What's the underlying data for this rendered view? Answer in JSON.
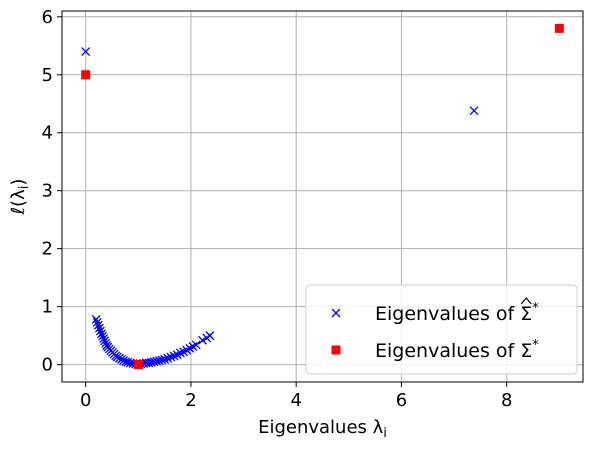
{
  "chart_data": {
    "type": "scatter",
    "xlabel": "Eigenvalues λ",
    "xlabel_sub": "i",
    "ylabel": "ℓ(λ",
    "ylabel_sub": "i",
    "ylabel_close": ")",
    "xlim": [
      -0.45,
      9.45
    ],
    "ylim": [
      -0.3,
      6.1
    ],
    "x_ticks": [
      0,
      2,
      4,
      6,
      8
    ],
    "y_ticks": [
      0,
      1,
      2,
      3,
      4,
      5,
      6
    ],
    "grid": true,
    "legend_position": "lower-right",
    "series": [
      {
        "name": "Eigenvalues of Σ̂*",
        "legend_prefix": "Eigenvalues of ",
        "legend_symbol": "Σ",
        "legend_symbol_decoration": "hat",
        "legend_superscript": "*",
        "marker": "x",
        "color": "#0000ff",
        "points": [
          [
            0.0,
            5.4
          ],
          [
            7.38,
            4.38
          ],
          [
            0.2,
            0.78
          ],
          [
            0.22,
            0.73
          ],
          [
            0.24,
            0.68
          ],
          [
            0.26,
            0.63
          ],
          [
            0.28,
            0.58
          ],
          [
            0.3,
            0.53
          ],
          [
            0.32,
            0.49
          ],
          [
            0.34,
            0.45
          ],
          [
            0.36,
            0.41
          ],
          [
            0.38,
            0.37
          ],
          [
            0.4,
            0.33
          ],
          [
            0.42,
            0.3
          ],
          [
            0.45,
            0.27
          ],
          [
            0.48,
            0.24
          ],
          [
            0.51,
            0.21
          ],
          [
            0.54,
            0.18
          ],
          [
            0.57,
            0.15
          ],
          [
            0.6,
            0.13
          ],
          [
            0.64,
            0.11
          ],
          [
            0.68,
            0.09
          ],
          [
            0.72,
            0.07
          ],
          [
            0.76,
            0.05
          ],
          [
            0.8,
            0.04
          ],
          [
            0.85,
            0.03
          ],
          [
            0.9,
            0.02
          ],
          [
            0.95,
            0.01
          ],
          [
            1.0,
            0.0
          ],
          [
            1.05,
            0.01
          ],
          [
            1.1,
            0.02
          ],
          [
            1.15,
            0.03
          ],
          [
            1.2,
            0.03
          ],
          [
            1.25,
            0.04
          ],
          [
            1.3,
            0.05
          ],
          [
            1.35,
            0.06
          ],
          [
            1.4,
            0.07
          ],
          [
            1.45,
            0.08
          ],
          [
            1.5,
            0.09
          ],
          [
            1.56,
            0.11
          ],
          [
            1.62,
            0.13
          ],
          [
            1.68,
            0.15
          ],
          [
            1.74,
            0.17
          ],
          [
            1.8,
            0.2
          ],
          [
            1.86,
            0.22
          ],
          [
            1.92,
            0.25
          ],
          [
            1.98,
            0.28
          ],
          [
            2.04,
            0.31
          ],
          [
            2.1,
            0.34
          ],
          [
            2.22,
            0.42
          ],
          [
            2.3,
            0.46
          ],
          [
            2.36,
            0.5
          ]
        ]
      },
      {
        "name": "Eigenvalues of Σ*",
        "legend_prefix": "Eigenvalues of ",
        "legend_symbol": "Σ",
        "legend_symbol_decoration": "",
        "legend_superscript": "*",
        "marker": "square",
        "color": "#ff0000",
        "points": [
          [
            0.0,
            5.0
          ],
          [
            9.0,
            5.8
          ],
          [
            1.0,
            0.0
          ]
        ]
      }
    ]
  }
}
